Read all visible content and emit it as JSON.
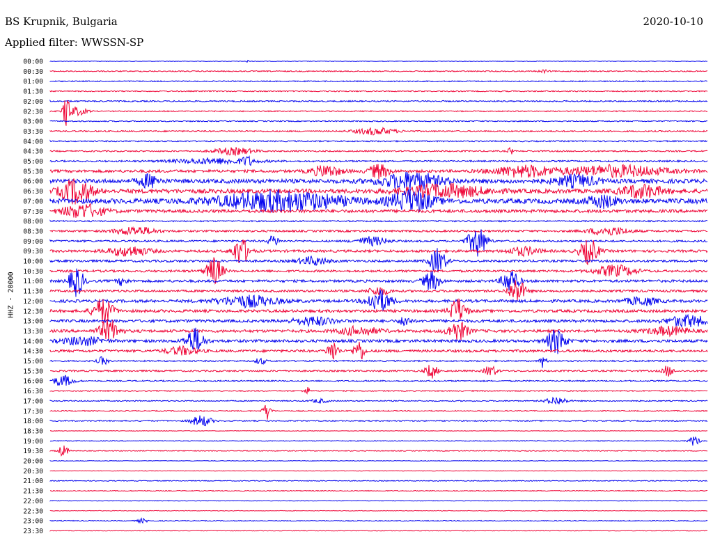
{
  "header": {
    "station": "BS Krupnik, Bulgaria",
    "date": "2020-10-10",
    "filter": "Applied filter: WWSSN-SP"
  },
  "chart_data": {
    "type": "line",
    "title": "BS Krupnik, Bulgaria",
    "ylabel": "HHZ - 20000",
    "colors": [
      "#0000ee",
      "#ee0033"
    ],
    "traces": [
      {
        "label": "00:00",
        "color": "#0000ee",
        "noise": 0.4,
        "bursts": [
          {
            "t": 0.3,
            "a": 5,
            "w": 2
          }
        ]
      },
      {
        "label": "00:30",
        "color": "#ee0033",
        "noise": 0.8,
        "bursts": [
          {
            "t": 0.75,
            "a": 2,
            "w": 10
          }
        ]
      },
      {
        "label": "01:00",
        "color": "#0000ee",
        "noise": 0.8,
        "bursts": []
      },
      {
        "label": "01:30",
        "color": "#ee0033",
        "noise": 0.8,
        "bursts": []
      },
      {
        "label": "02:00",
        "color": "#0000ee",
        "noise": 1.0,
        "bursts": []
      },
      {
        "label": "02:30",
        "color": "#ee0033",
        "noise": 0.8,
        "bursts": [
          {
            "t": 0.025,
            "a": 28,
            "w": 6
          },
          {
            "t": 0.04,
            "a": 6,
            "w": 20
          }
        ]
      },
      {
        "label": "03:00",
        "color": "#0000ee",
        "noise": 0.8,
        "bursts": []
      },
      {
        "label": "03:30",
        "color": "#ee0033",
        "noise": 1.0,
        "bursts": [
          {
            "t": 0.495,
            "a": 5,
            "w": 40
          }
        ]
      },
      {
        "label": "04:00",
        "color": "#0000ee",
        "noise": 0.9,
        "bursts": []
      },
      {
        "label": "04:30",
        "color": "#ee0033",
        "noise": 1.0,
        "bursts": [
          {
            "t": 0.28,
            "a": 5,
            "w": 40
          },
          {
            "t": 0.7,
            "a": 7,
            "w": 4
          }
        ]
      },
      {
        "label": "05:00",
        "color": "#0000ee",
        "noise": 1.2,
        "bursts": [
          {
            "t": 0.25,
            "a": 4,
            "w": 80
          },
          {
            "t": 0.3,
            "a": 6,
            "w": 10
          }
        ]
      },
      {
        "label": "05:30",
        "color": "#ee0033",
        "noise": 2.0,
        "bursts": [
          {
            "t": 0.42,
            "a": 8,
            "w": 30
          },
          {
            "t": 0.5,
            "a": 10,
            "w": 20
          },
          {
            "t": 0.72,
            "a": 8,
            "w": 60
          },
          {
            "t": 0.86,
            "a": 8,
            "w": 100
          }
        ]
      },
      {
        "label": "06:00",
        "color": "#0000ee",
        "noise": 3.0,
        "bursts": [
          {
            "t": 0.15,
            "a": 9,
            "w": 20
          },
          {
            "t": 0.55,
            "a": 12,
            "w": 60
          },
          {
            "t": 0.8,
            "a": 8,
            "w": 40
          }
        ]
      },
      {
        "label": "06:30",
        "color": "#ee0033",
        "noise": 3.0,
        "bursts": [
          {
            "t": 0.04,
            "a": 18,
            "w": 30
          },
          {
            "t": 0.6,
            "a": 9,
            "w": 80
          },
          {
            "t": 0.9,
            "a": 9,
            "w": 40
          }
        ]
      },
      {
        "label": "07:00",
        "color": "#0000ee",
        "noise": 3.5,
        "bursts": [
          {
            "t": 0.35,
            "a": 14,
            "w": 120
          },
          {
            "t": 0.55,
            "a": 16,
            "w": 40
          },
          {
            "t": 0.84,
            "a": 8,
            "w": 30
          }
        ]
      },
      {
        "label": "07:30",
        "color": "#ee0033",
        "noise": 2.2,
        "bursts": [
          {
            "t": 0.05,
            "a": 10,
            "w": 40
          }
        ]
      },
      {
        "label": "08:00",
        "color": "#0000ee",
        "noise": 1.0,
        "bursts": []
      },
      {
        "label": "08:30",
        "color": "#ee0033",
        "noise": 1.4,
        "bursts": [
          {
            "t": 0.13,
            "a": 6,
            "w": 40
          },
          {
            "t": 0.85,
            "a": 6,
            "w": 40
          }
        ]
      },
      {
        "label": "09:00",
        "color": "#0000ee",
        "noise": 1.4,
        "bursts": [
          {
            "t": 0.49,
            "a": 6,
            "w": 30
          },
          {
            "t": 0.65,
            "a": 22,
            "w": 18
          },
          {
            "t": 0.34,
            "a": 8,
            "w": 10
          }
        ]
      },
      {
        "label": "09:30",
        "color": "#ee0033",
        "noise": 1.8,
        "bursts": [
          {
            "t": 0.29,
            "a": 20,
            "w": 16
          },
          {
            "t": 0.82,
            "a": 18,
            "w": 18
          },
          {
            "t": 0.12,
            "a": 7,
            "w": 40
          },
          {
            "t": 0.72,
            "a": 6,
            "w": 30
          }
        ]
      },
      {
        "label": "10:00",
        "color": "#0000ee",
        "noise": 1.6,
        "bursts": [
          {
            "t": 0.59,
            "a": 18,
            "w": 16
          },
          {
            "t": 0.4,
            "a": 6,
            "w": 30
          }
        ]
      },
      {
        "label": "10:30",
        "color": "#ee0033",
        "noise": 1.6,
        "bursts": [
          {
            "t": 0.25,
            "a": 20,
            "w": 16
          },
          {
            "t": 0.86,
            "a": 8,
            "w": 40
          }
        ]
      },
      {
        "label": "11:00",
        "color": "#0000ee",
        "noise": 1.8,
        "bursts": [
          {
            "t": 0.04,
            "a": 22,
            "w": 14
          },
          {
            "t": 0.58,
            "a": 14,
            "w": 16
          },
          {
            "t": 0.7,
            "a": 18,
            "w": 16
          },
          {
            "t": 0.11,
            "a": 6,
            "w": 10
          }
        ]
      },
      {
        "label": "11:30",
        "color": "#ee0033",
        "noise": 1.6,
        "bursts": [
          {
            "t": 0.71,
            "a": 18,
            "w": 16
          },
          {
            "t": 0.5,
            "a": 6,
            "w": 20
          }
        ]
      },
      {
        "label": "12:00",
        "color": "#0000ee",
        "noise": 2.0,
        "bursts": [
          {
            "t": 0.5,
            "a": 16,
            "w": 24
          },
          {
            "t": 0.3,
            "a": 8,
            "w": 60
          },
          {
            "t": 0.9,
            "a": 6,
            "w": 30
          }
        ]
      },
      {
        "label": "12:30",
        "color": "#ee0033",
        "noise": 2.0,
        "bursts": [
          {
            "t": 0.08,
            "a": 18,
            "w": 20
          },
          {
            "t": 0.62,
            "a": 18,
            "w": 16
          }
        ]
      },
      {
        "label": "13:00",
        "color": "#0000ee",
        "noise": 2.0,
        "bursts": [
          {
            "t": 0.54,
            "a": 8,
            "w": 10
          },
          {
            "t": 0.97,
            "a": 8,
            "w": 40
          },
          {
            "t": 0.4,
            "a": 6,
            "w": 40
          }
        ]
      },
      {
        "label": "13:30",
        "color": "#ee0033",
        "noise": 2.0,
        "bursts": [
          {
            "t": 0.09,
            "a": 16,
            "w": 20
          },
          {
            "t": 0.62,
            "a": 14,
            "w": 20
          },
          {
            "t": 0.47,
            "a": 6,
            "w": 40
          },
          {
            "t": 0.94,
            "a": 6,
            "w": 40
          }
        ]
      },
      {
        "label": "14:00",
        "color": "#0000ee",
        "noise": 2.0,
        "bursts": [
          {
            "t": 0.05,
            "a": 6,
            "w": 40
          },
          {
            "t": 0.22,
            "a": 18,
            "w": 18
          },
          {
            "t": 0.77,
            "a": 18,
            "w": 18
          }
        ]
      },
      {
        "label": "14:30",
        "color": "#ee0033",
        "noise": 1.8,
        "bursts": [
          {
            "t": 0.43,
            "a": 16,
            "w": 10
          },
          {
            "t": 0.47,
            "a": 16,
            "w": 10
          },
          {
            "t": 0.2,
            "a": 6,
            "w": 30
          }
        ]
      },
      {
        "label": "15:00",
        "color": "#0000ee",
        "noise": 1.0,
        "bursts": [
          {
            "t": 0.08,
            "a": 6,
            "w": 10
          },
          {
            "t": 0.32,
            "a": 5,
            "w": 10
          },
          {
            "t": 0.75,
            "a": 10,
            "w": 6
          }
        ]
      },
      {
        "label": "15:30",
        "color": "#ee0033",
        "noise": 1.2,
        "bursts": [
          {
            "t": 0.58,
            "a": 10,
            "w": 12
          },
          {
            "t": 0.67,
            "a": 8,
            "w": 12
          },
          {
            "t": 0.94,
            "a": 8,
            "w": 10
          }
        ]
      },
      {
        "label": "16:00",
        "color": "#0000ee",
        "noise": 1.0,
        "bursts": [
          {
            "t": 0.02,
            "a": 8,
            "w": 20
          }
        ]
      },
      {
        "label": "16:30",
        "color": "#ee0033",
        "noise": 0.8,
        "bursts": [
          {
            "t": 0.39,
            "a": 6,
            "w": 6
          }
        ]
      },
      {
        "label": "17:00",
        "color": "#0000ee",
        "noise": 0.8,
        "bursts": [
          {
            "t": 0.77,
            "a": 6,
            "w": 20
          },
          {
            "t": 0.41,
            "a": 3,
            "w": 16
          }
        ]
      },
      {
        "label": "17:30",
        "color": "#ee0033",
        "noise": 0.8,
        "bursts": [
          {
            "t": 0.33,
            "a": 12,
            "w": 8
          }
        ]
      },
      {
        "label": "18:00",
        "color": "#0000ee",
        "noise": 0.8,
        "bursts": [
          {
            "t": 0.23,
            "a": 8,
            "w": 20
          }
        ]
      },
      {
        "label": "18:30",
        "color": "#ee0033",
        "noise": 0.4,
        "bursts": []
      },
      {
        "label": "19:00",
        "color": "#0000ee",
        "noise": 0.6,
        "bursts": [
          {
            "t": 0.98,
            "a": 7,
            "w": 10
          }
        ]
      },
      {
        "label": "19:30",
        "color": "#ee0033",
        "noise": 0.6,
        "bursts": [
          {
            "t": 0.02,
            "a": 8,
            "w": 10
          }
        ]
      },
      {
        "label": "20:00",
        "color": "#0000ee",
        "noise": 0.4,
        "bursts": []
      },
      {
        "label": "20:30",
        "color": "#ee0033",
        "noise": 0.4,
        "bursts": []
      },
      {
        "label": "21:00",
        "color": "#0000ee",
        "noise": 0.6,
        "bursts": []
      },
      {
        "label": "21:30",
        "color": "#ee0033",
        "noise": 0.6,
        "bursts": []
      },
      {
        "label": "22:00",
        "color": "#0000ee",
        "noise": 0.4,
        "bursts": []
      },
      {
        "label": "22:30",
        "color": "#ee0033",
        "noise": 0.4,
        "bursts": []
      },
      {
        "label": "23:00",
        "color": "#0000ee",
        "noise": 0.6,
        "bursts": [
          {
            "t": 0.14,
            "a": 3,
            "w": 10
          }
        ]
      },
      {
        "label": "23:30",
        "color": "#ee0033",
        "noise": 0.4,
        "bursts": []
      }
    ]
  }
}
